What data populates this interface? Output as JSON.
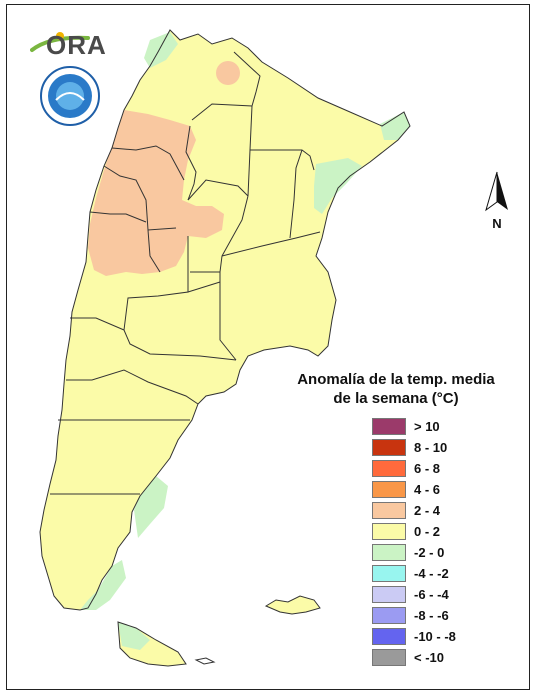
{
  "logo": {
    "text": "ORA"
  },
  "compass": {
    "label": "N"
  },
  "legend": {
    "title_line1": "Anomalía de la temp. media",
    "title_line2": "de la semana (°C)",
    "items": [
      {
        "label": "> 10",
        "color": "#9b3a6a"
      },
      {
        "label": "8 - 10",
        "color": "#c8340f"
      },
      {
        "label": "6 - 8",
        "color": "#ff6a3c"
      },
      {
        "label": "4 - 6",
        "color": "#f99748"
      },
      {
        "label": "2 - 4",
        "color": "#f9c8a0"
      },
      {
        "label": "0 - 2",
        "color": "#fbfba8"
      },
      {
        "label": "-2 - 0",
        "color": "#cbf3c5"
      },
      {
        "label": "-4 - -2",
        "color": "#98f5ef"
      },
      {
        "label": "-6 - -4",
        "color": "#cbcbf4"
      },
      {
        "label": "-8 - -6",
        "color": "#9b9bf2"
      },
      {
        "label": "-10 - -8",
        "color": "#6464ef"
      },
      {
        "label": "< -10",
        "color": "#9a9a9a"
      }
    ]
  },
  "map_colors": {
    "anomaly_0_2": "#fbfba8",
    "anomaly_2_4": "#f9c8a0",
    "anomaly_neg2_0": "#cbf3c5",
    "border": "#333333"
  }
}
